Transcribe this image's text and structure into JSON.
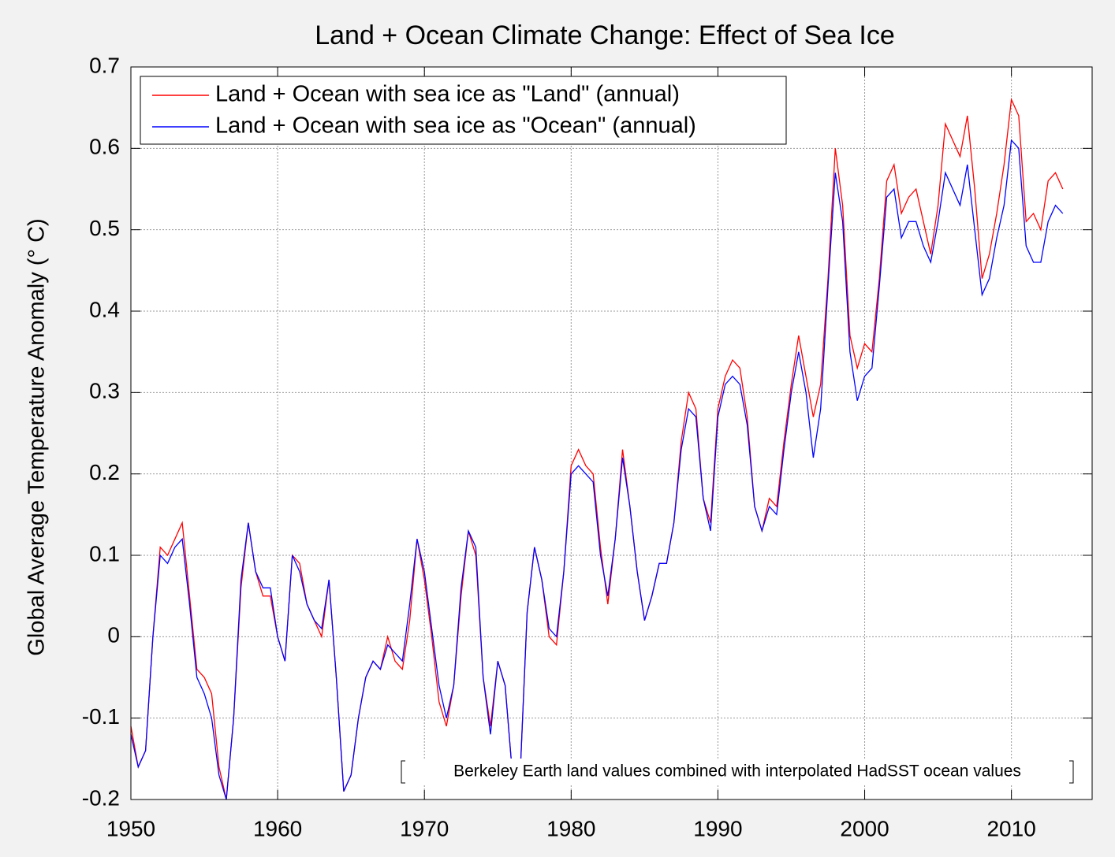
{
  "chart_data": {
    "type": "line",
    "title": "Land + Ocean Climate Change: Effect of Sea Ice",
    "y_label": "Global Average Temperature Anomaly (° C)",
    "annotation": "Berkeley Earth land values combined with interpolated HadSST ocean values",
    "legend": "top-left",
    "grid": true,
    "xlim": [
      1950,
      2015.5
    ],
    "xticks": [
      1950,
      1960,
      1970,
      1980,
      1990,
      2000,
      2010
    ],
    "ylim": [
      -0.2,
      0.7
    ],
    "yticks": [
      -0.2,
      -0.1,
      0,
      0.1,
      0.2,
      0.3,
      0.4,
      0.5,
      0.6,
      0.7
    ],
    "x": [
      1950,
      1950.5,
      1951,
      1951.5,
      1952,
      1952.5,
      1953,
      1953.5,
      1954,
      1954.5,
      1955,
      1955.5,
      1956,
      1956.5,
      1957,
      1957.5,
      1958,
      1958.5,
      1959,
      1959.5,
      1960,
      1960.5,
      1961,
      1961.5,
      1962,
      1962.5,
      1963,
      1963.5,
      1964,
      1964.5,
      1965,
      1965.5,
      1966,
      1966.5,
      1967,
      1967.5,
      1968,
      1968.5,
      1969,
      1969.5,
      1970,
      1970.5,
      1971,
      1971.5,
      1972,
      1972.5,
      1973,
      1973.5,
      1974,
      1974.5,
      1975,
      1975.5,
      1976,
      1976.5,
      1977,
      1977.5,
      1978,
      1978.5,
      1979,
      1979.5,
      1980,
      1980.5,
      1981,
      1981.5,
      1982,
      1982.5,
      1983,
      1983.5,
      1984,
      1984.5,
      1985,
      1985.5,
      1986,
      1986.5,
      1987,
      1987.5,
      1988,
      1988.5,
      1989,
      1989.5,
      1990,
      1990.5,
      1991,
      1991.5,
      1992,
      1992.5,
      1993,
      1993.5,
      1994,
      1994.5,
      1995,
      1995.5,
      1996,
      1996.5,
      1997,
      1997.5,
      1998,
      1998.5,
      1999,
      1999.5,
      2000,
      2000.5,
      2001,
      2001.5,
      2002,
      2002.5,
      2003,
      2003.5,
      2004,
      2004.5,
      2005,
      2005.5,
      2006,
      2006.5,
      2007,
      2007.5,
      2008,
      2008.5,
      2009,
      2009.5,
      2010,
      2010.5,
      2011,
      2011.5,
      2012,
      2012.5,
      2013,
      2013.5
    ],
    "series": [
      {
        "name": "Land + Ocean with sea ice as \"Land\" (annual)",
        "color": "#ff0000",
        "values": [
          -0.11,
          -0.16,
          -0.14,
          0.0,
          0.11,
          0.1,
          0.12,
          0.14,
          0.05,
          -0.04,
          -0.05,
          -0.07,
          -0.16,
          -0.2,
          -0.1,
          0.06,
          0.14,
          0.08,
          0.05,
          0.05,
          0.0,
          -0.03,
          0.1,
          0.09,
          0.04,
          0.02,
          0.0,
          0.07,
          -0.05,
          -0.19,
          -0.17,
          -0.1,
          -0.05,
          -0.03,
          -0.04,
          0.0,
          -0.03,
          -0.04,
          0.02,
          0.12,
          0.07,
          0.0,
          -0.08,
          -0.11,
          -0.06,
          0.05,
          0.13,
          0.1,
          -0.05,
          -0.11,
          -0.03,
          -0.06,
          -0.17,
          -0.18,
          0.03,
          0.11,
          0.07,
          0.0,
          -0.01,
          0.08,
          0.21,
          0.23,
          0.21,
          0.2,
          0.11,
          0.04,
          0.12,
          0.23,
          0.16,
          0.08,
          0.02,
          0.05,
          0.09,
          0.09,
          0.14,
          0.24,
          0.3,
          0.28,
          0.17,
          0.14,
          0.28,
          0.32,
          0.34,
          0.33,
          0.27,
          0.16,
          0.13,
          0.17,
          0.16,
          0.24,
          0.31,
          0.37,
          0.32,
          0.27,
          0.31,
          0.44,
          0.6,
          0.53,
          0.37,
          0.33,
          0.36,
          0.35,
          0.44,
          0.56,
          0.58,
          0.52,
          0.54,
          0.55,
          0.51,
          0.47,
          0.53,
          0.63,
          0.61,
          0.59,
          0.64,
          0.55,
          0.44,
          0.47,
          0.52,
          0.58,
          0.66,
          0.64,
          0.51,
          0.52,
          0.5,
          0.56,
          0.57,
          0.55
        ]
      },
      {
        "name": "Land + Ocean with sea ice as \"Ocean\" (annual)",
        "color": "#0000ff",
        "values": [
          -0.12,
          -0.16,
          -0.14,
          0.0,
          0.1,
          0.09,
          0.11,
          0.12,
          0.04,
          -0.05,
          -0.07,
          -0.1,
          -0.17,
          -0.2,
          -0.1,
          0.07,
          0.14,
          0.08,
          0.06,
          0.06,
          0.0,
          -0.03,
          0.1,
          0.08,
          0.04,
          0.02,
          0.01,
          0.07,
          -0.05,
          -0.19,
          -0.17,
          -0.1,
          -0.05,
          -0.03,
          -0.04,
          -0.01,
          -0.02,
          -0.03,
          0.04,
          0.12,
          0.08,
          0.01,
          -0.06,
          -0.1,
          -0.06,
          0.06,
          0.13,
          0.11,
          -0.05,
          -0.12,
          -0.03,
          -0.06,
          -0.17,
          -0.18,
          0.03,
          0.11,
          0.07,
          0.01,
          0.0,
          0.08,
          0.2,
          0.21,
          0.2,
          0.19,
          0.1,
          0.05,
          0.12,
          0.22,
          0.16,
          0.08,
          0.02,
          0.05,
          0.09,
          0.09,
          0.14,
          0.23,
          0.28,
          0.27,
          0.17,
          0.13,
          0.27,
          0.31,
          0.32,
          0.31,
          0.26,
          0.16,
          0.13,
          0.16,
          0.15,
          0.23,
          0.3,
          0.35,
          0.3,
          0.22,
          0.28,
          0.43,
          0.57,
          0.51,
          0.35,
          0.29,
          0.32,
          0.33,
          0.43,
          0.54,
          0.55,
          0.49,
          0.51,
          0.51,
          0.48,
          0.46,
          0.51,
          0.57,
          0.55,
          0.53,
          0.58,
          0.5,
          0.42,
          0.44,
          0.49,
          0.53,
          0.61,
          0.6,
          0.48,
          0.46,
          0.46,
          0.51,
          0.53,
          0.52
        ]
      }
    ]
  }
}
